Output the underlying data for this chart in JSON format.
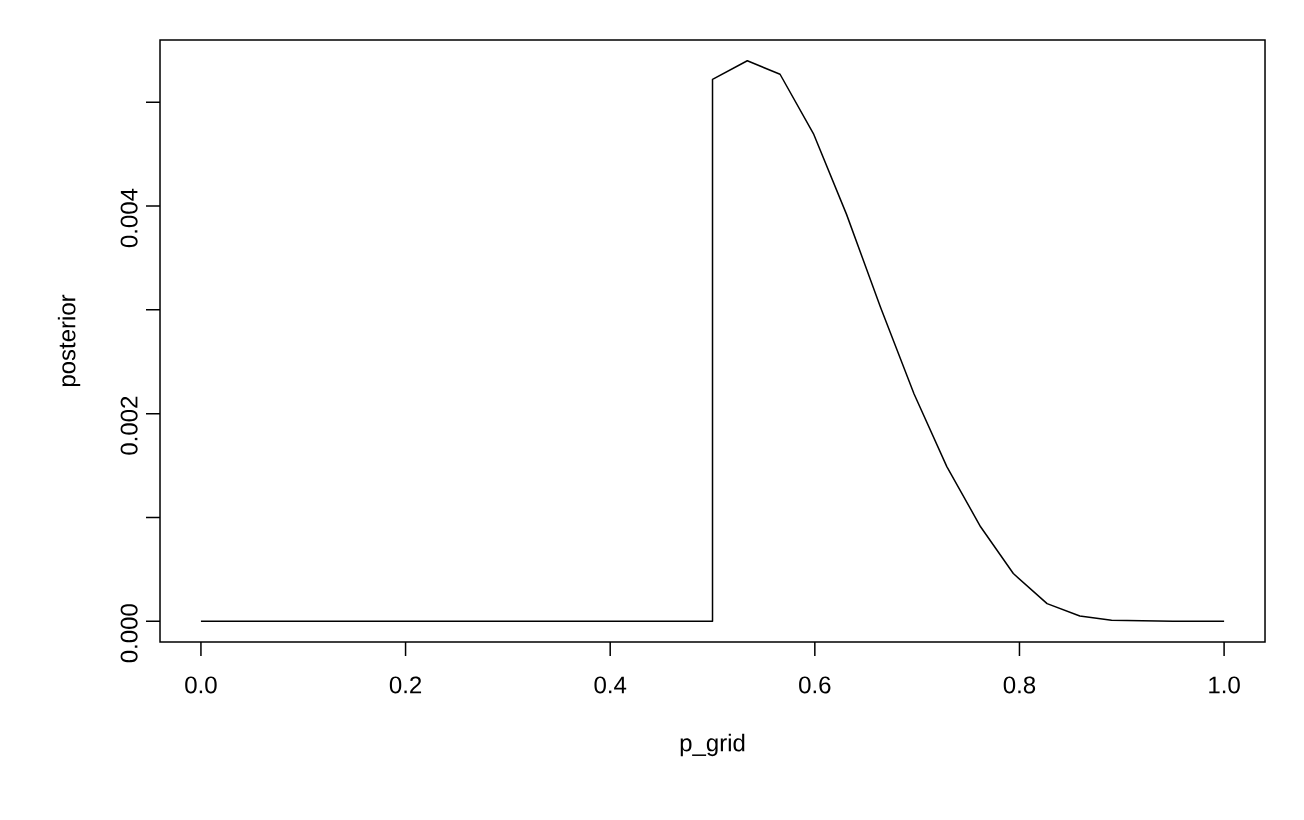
{
  "chart_data": {
    "type": "line",
    "xlabel": "p_grid",
    "ylabel": "posterior",
    "x": [
      0,
      0.5,
      0.5,
      0.534,
      0.566,
      0.599,
      0.631,
      0.664,
      0.697,
      0.729,
      0.762,
      0.794,
      0.827,
      0.859,
      0.89,
      0.95,
      1.0
    ],
    "series": [
      {
        "color": "#000000",
        "values": [
          0,
          0,
          0.00522,
          0.0054,
          0.00527,
          0.00469,
          0.00392,
          0.00303,
          0.00219,
          0.00149,
          0.00091,
          0.00046,
          0.00017,
          5e-05,
          1e-05,
          0,
          0
        ]
      }
    ],
    "xlim": [
      -0.04,
      1.04
    ],
    "ylim": [
      -0.0002,
      0.0056
    ],
    "xticks": [
      {
        "value": 0,
        "label": "0.0"
      },
      0.2,
      0.4,
      0.6,
      0.8,
      {
        "value": 1,
        "label": "1.0"
      }
    ],
    "yticks": [
      {
        "value": 0,
        "label": "0.000"
      },
      {
        "value": 0.001,
        "label": null
      },
      {
        "value": 0.002,
        "label": "0.002"
      },
      {
        "value": 0.003,
        "label": null
      },
      {
        "value": 0.004,
        "label": "0.004"
      },
      {
        "value": 0.005,
        "label": null
      }
    ]
  }
}
